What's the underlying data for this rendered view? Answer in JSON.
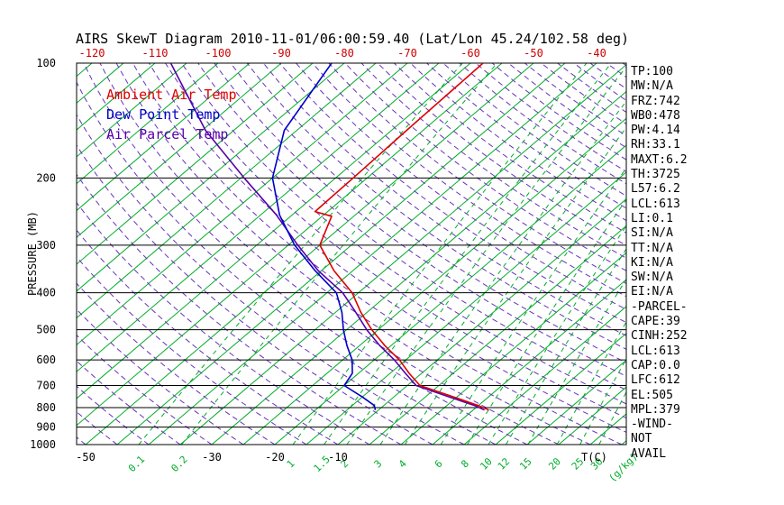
{
  "title": "AIRS SkewT Diagram 2010-11-01/06:00:59.40 (Lat/Lon 45.24/102.58 deg)",
  "legend": [
    {
      "label": "Ambient Air Temp",
      "color": "#DD0000"
    },
    {
      "label": "Dew Point Temp",
      "color": "#0000C8"
    },
    {
      "label": "Air Parcel Temp",
      "color": "#5500AA"
    }
  ],
  "stats_panel": [
    "TP:100",
    "MW:N/A",
    "FRZ:742",
    "WB0:478",
    "PW:4.14",
    "RH:33.1",
    "MAXT:6.2",
    "TH:3725",
    "L57:6.2",
    "LCL:613",
    "LI:0.1",
    "SI:N/A",
    "TT:N/A",
    "KI:N/A",
    "SW:N/A",
    "EI:N/A",
    "-PARCEL-",
    "CAPE:39",
    "CINH:252",
    "LCL:613",
    "CAP:0.0",
    "LFC:612",
    "EL:505",
    "MPL:379",
    "-WIND-",
    "NOT",
    "AVAIL"
  ],
  "colors": {
    "isotherm_green": "#00AD28",
    "mixing_green": "#00AD28",
    "adiabat_purple": "#6633BB",
    "ambient_red": "#DD0000",
    "dewpoint_blue": "#0000C8",
    "parcel_purple": "#5500AA",
    "top_axis_red": "#CC0000",
    "axis_black": "#000000"
  },
  "chart_data": {
    "type": "line",
    "subtype": "skew-t log-p sounding",
    "title": "AIRS SkewT Diagram 2010-11-01/06:00:59.40 (Lat/Lon 45.24/102.58 deg)",
    "ylabel": "PRESSURE (MB)",
    "xlabel": "T(C)",
    "mixing_unit_label": "(g/kg)",
    "y_axis": {
      "scale": "log",
      "range_mb": [
        100,
        1000
      ]
    },
    "pressure_levels_mb": [
      100,
      200,
      300,
      400,
      500,
      600,
      700,
      800,
      900,
      1000
    ],
    "top_axis_temp_c": [
      -120,
      -110,
      -100,
      -90,
      -80,
      -70,
      -60,
      -50,
      -40
    ],
    "bottom_axis_temp_c": [
      -50,
      -30,
      -20,
      -10
    ],
    "isotherm_range_c": [
      -125,
      40
    ],
    "isotherm_step_c": 5,
    "dry_adiabat_theta_c_range": [
      -50,
      190
    ],
    "dry_adiabat_step_c": 5,
    "mixing_ratio_lines_g_kg": [
      0.1,
      0.2,
      1,
      1.5,
      2,
      3,
      4,
      6,
      8,
      10,
      12,
      15,
      20,
      25,
      30
    ],
    "grid": true,
    "legend_position": "upper-left inside plot",
    "series": [
      {
        "name": "Ambient Air Temp",
        "color": "#DD0000",
        "units": [
          "mb",
          "degC"
        ],
        "points": [
          [
            100,
            -58
          ],
          [
            150,
            -57.6
          ],
          [
            200,
            -57.2
          ],
          [
            245,
            -57
          ],
          [
            252,
            -53.5
          ],
          [
            300,
            -50
          ],
          [
            350,
            -43
          ],
          [
            400,
            -36
          ],
          [
            450,
            -31
          ],
          [
            500,
            -26
          ],
          [
            550,
            -21
          ],
          [
            600,
            -16
          ],
          [
            650,
            -12
          ],
          [
            700,
            -8
          ],
          [
            750,
            -0.5
          ],
          [
            790,
            5
          ],
          [
            812,
            7.5
          ]
        ]
      },
      {
        "name": "Dew Point Temp",
        "color": "#0000C8",
        "units": [
          "mb",
          "degC"
        ],
        "points": [
          [
            100,
            -82
          ],
          [
            150,
            -77
          ],
          [
            200,
            -70
          ],
          [
            250,
            -62
          ],
          [
            300,
            -54
          ],
          [
            350,
            -46
          ],
          [
            400,
            -38.5
          ],
          [
            450,
            -34
          ],
          [
            500,
            -30.5
          ],
          [
            550,
            -27
          ],
          [
            600,
            -23.5
          ],
          [
            650,
            -21
          ],
          [
            700,
            -20
          ],
          [
            750,
            -15
          ],
          [
            790,
            -11.5
          ],
          [
            812,
            -10.5
          ]
        ]
      },
      {
        "name": "Air Parcel Temp",
        "color": "#5500AA",
        "units": [
          "mb",
          "degC"
        ],
        "points": [
          [
            100,
            -107.5
          ],
          [
            150,
            -89.5
          ],
          [
            200,
            -74.5
          ],
          [
            250,
            -62.5
          ],
          [
            300,
            -53.5
          ],
          [
            350,
            -45.5
          ],
          [
            400,
            -37.5
          ],
          [
            450,
            -31.8
          ],
          [
            500,
            -26.8
          ],
          [
            550,
            -21.8
          ],
          [
            600,
            -16.8
          ],
          [
            650,
            -12.6
          ],
          [
            700,
            -8.6
          ],
          [
            750,
            -1.2
          ],
          [
            790,
            4.4
          ],
          [
            812,
            6.8
          ]
        ]
      }
    ]
  }
}
